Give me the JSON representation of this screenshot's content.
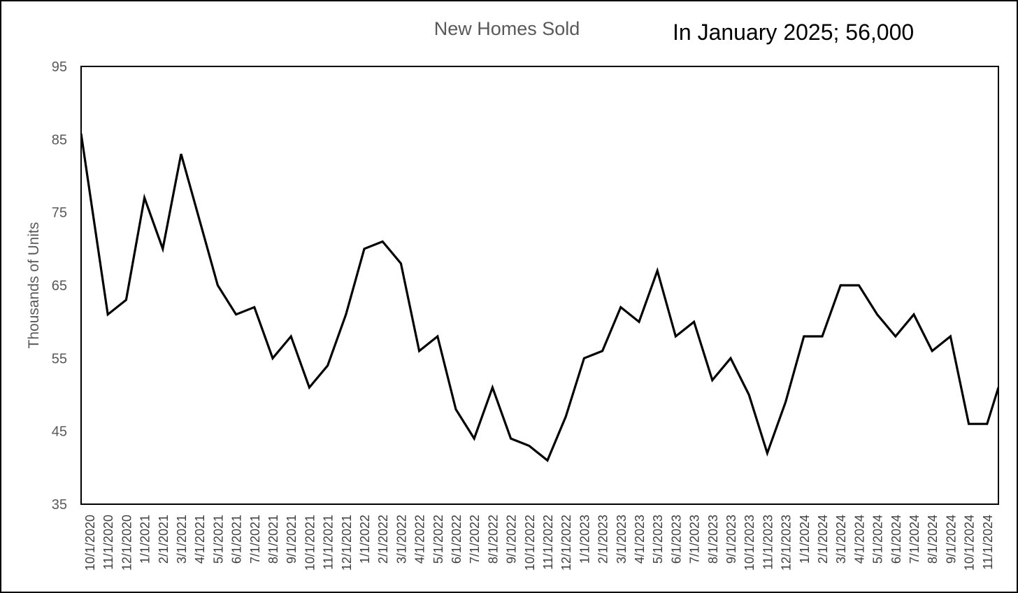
{
  "chart_data": {
    "type": "line",
    "title": "New Homes Sold",
    "annotation": "In January 2025; 56,000",
    "xlabel": "",
    "ylabel": "Thousands of Units",
    "ylim": [
      35,
      95
    ],
    "yticks": [
      35,
      45,
      55,
      65,
      75,
      85,
      95
    ],
    "grid": false,
    "legend": "none",
    "line_color": "#000000",
    "categories": [
      "10/1/2020",
      "11/1/2020",
      "12/1/2020",
      "1/1/2021",
      "2/1/2021",
      "3/1/2021",
      "4/1/2021",
      "5/1/2021",
      "6/1/2021",
      "7/1/2021",
      "8/1/2021",
      "9/1/2021",
      "10/1/2021",
      "11/1/2021",
      "12/1/2021",
      "1/1/2022",
      "2/1/2022",
      "3/1/2022",
      "4/1/2022",
      "5/1/2022",
      "6/1/2022",
      "7/1/2022",
      "8/1/2022",
      "9/1/2022",
      "10/1/2022",
      "11/1/2022",
      "12/1/2022",
      "1/1/2023",
      "2/1/2023",
      "3/1/2023",
      "4/1/2023",
      "5/1/2023",
      "6/1/2023",
      "7/1/2023",
      "8/1/2023",
      "9/1/2023",
      "10/1/2023",
      "11/1/2023",
      "12/1/2023",
      "1/1/2024",
      "2/1/2024",
      "3/1/2024",
      "4/1/2024",
      "5/1/2024",
      "6/1/2024",
      "7/1/2024",
      "8/1/2024",
      "9/1/2024",
      "10/1/2024",
      "11/1/2024"
    ],
    "series": [
      {
        "values": [
          78,
          61,
          63,
          77,
          70,
          83,
          74,
          65,
          61,
          62,
          55,
          58,
          51,
          54,
          61,
          70,
          71,
          68,
          56,
          58,
          48,
          44,
          51,
          44,
          43,
          41,
          47,
          55,
          56,
          62,
          60,
          67,
          58,
          60,
          52,
          55,
          50,
          42,
          49,
          58,
          58,
          65,
          65,
          61,
          58,
          61,
          56,
          58,
          46,
          46
        ]
      }
    ]
  }
}
